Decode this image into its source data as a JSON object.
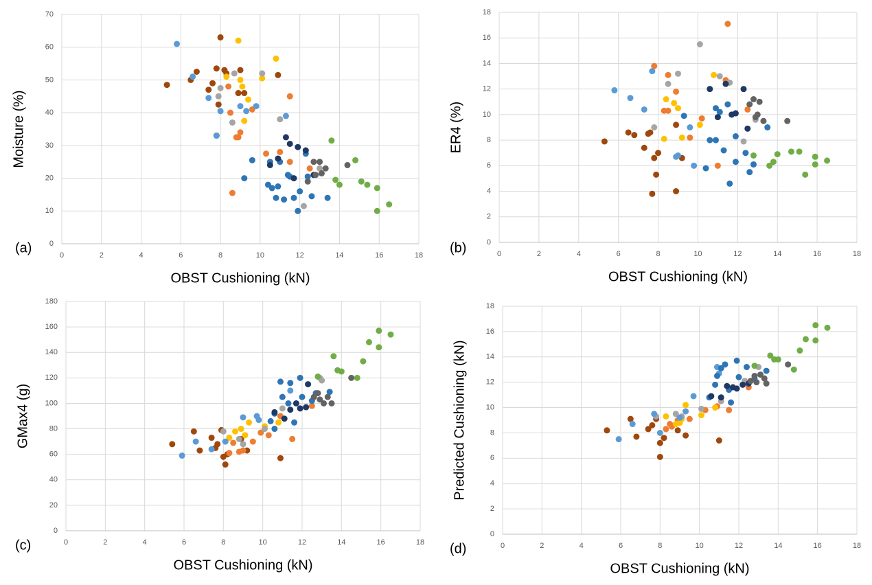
{
  "chart_data": [
    {
      "type": "scatter",
      "label": "(a)",
      "xlabel": "OBST Cushioning (kN)",
      "ylabel": "Moisture (%)",
      "xlim": [
        0,
        18
      ],
      "xticks": [
        0,
        2,
        4,
        6,
        8,
        10,
        12,
        14,
        16,
        18
      ],
      "ylim": [
        0,
        70
      ],
      "yticks": [
        0,
        10,
        20,
        30,
        40,
        50,
        60,
        70
      ],
      "grid": true,
      "series": [
        {
          "color": "#9e480e",
          "x": [
            5.3,
            6.5,
            6.8,
            7.4,
            7.6,
            7.8,
            7.9,
            8.0,
            8.2,
            8.9,
            9.0,
            9.2,
            7.8,
            10.9,
            8.3
          ],
          "values": [
            48.5,
            50,
            52.5,
            47,
            49,
            53.5,
            42.5,
            63,
            53,
            46,
            53,
            46,
            33,
            51.5,
            52
          ]
        },
        {
          "color": "#ed7d31",
          "x": [
            8.5,
            8.8,
            9.0,
            8.9,
            10.3,
            11.0,
            11.5,
            11.5,
            12.5,
            8.6,
            8.4,
            9.6
          ],
          "values": [
            40,
            32.5,
            34,
            32.5,
            27.5,
            28,
            45,
            25,
            23,
            15.5,
            48,
            41
          ]
        },
        {
          "color": "#ffc000",
          "x": [
            8.9,
            10.8,
            8.3,
            9.0,
            10.1,
            9.1,
            9.2,
            9.4
          ],
          "values": [
            62,
            56.5,
            51,
            50,
            50.5,
            48,
            37.5,
            44
          ]
        },
        {
          "color": "#a5a5a5",
          "x": [
            7.9,
            8.0,
            8.7,
            8.6,
            10.1,
            11.0,
            12.2,
            13.0
          ],
          "values": [
            45,
            47.5,
            52,
            37,
            52,
            38,
            11.5,
            23
          ]
        },
        {
          "color": "#5b9bd5",
          "x": [
            5.8,
            6.6,
            7.4,
            7.8,
            8.0,
            9.0,
            9.3,
            9.8,
            11.3
          ],
          "values": [
            61,
            51,
            44.5,
            33,
            40.5,
            42,
            40.5,
            42,
            39
          ]
        },
        {
          "color": "#2e75b6",
          "x": [
            9.2,
            9.6,
            10.4,
            10.6,
            10.8,
            10.9,
            11.2,
            11.4,
            11.7,
            11.9,
            12.0,
            12.4,
            12.6,
            13.4,
            10.5,
            11.0,
            12.3,
            11.5
          ],
          "values": [
            20,
            25.5,
            18,
            17,
            14,
            17.5,
            13.5,
            21,
            14,
            10,
            16,
            20.5,
            14.5,
            14,
            25,
            25,
            27.5,
            20.5
          ]
        },
        {
          "color": "#1f3864",
          "x": [
            10.5,
            10.9,
            11.3,
            11.5,
            11.9,
            12.3,
            11.7,
            12.7
          ],
          "values": [
            24,
            26,
            32.5,
            30.5,
            29.5,
            28.5,
            20,
            21
          ]
        },
        {
          "color": "#636363",
          "x": [
            12.7,
            13.0,
            13.3,
            12.8,
            13.1,
            14.4,
            12.4
          ],
          "values": [
            25,
            25,
            23,
            21,
            21.5,
            24,
            19
          ]
        },
        {
          "color": "#70ad47",
          "x": [
            13.6,
            13.8,
            14.0,
            14.8,
            15.1,
            15.4,
            15.9,
            15.9,
            16.5
          ],
          "values": [
            31.5,
            19.5,
            18,
            25.5,
            19,
            18,
            17,
            10,
            12
          ]
        }
      ]
    },
    {
      "type": "scatter",
      "label": "(b)",
      "xlabel": "OBST Cushioning (kN)",
      "ylabel": "ER4 (%)",
      "xlim": [
        0,
        18
      ],
      "xticks": [
        0,
        2,
        4,
        6,
        8,
        10,
        12,
        14,
        16,
        18
      ],
      "ylim": [
        0,
        18
      ],
      "yticks": [
        0,
        2,
        4,
        6,
        8,
        10,
        12,
        14,
        16,
        18
      ],
      "grid": true,
      "series": [
        {
          "color": "#9e480e",
          "x": [
            5.3,
            6.5,
            6.8,
            7.3,
            7.5,
            7.7,
            7.8,
            7.9,
            8.0,
            8.9,
            8.9,
            9.2,
            7.6
          ],
          "values": [
            7.9,
            8.6,
            8.4,
            7.4,
            8.5,
            3.8,
            6.6,
            5.3,
            7.0,
            4.0,
            9.2,
            6.6,
            8.6
          ]
        },
        {
          "color": "#ed7d31",
          "x": [
            7.8,
            8.5,
            8.9,
            8.5,
            9.6,
            10.2,
            11.0,
            11.5,
            11.4,
            12.5,
            8.3
          ],
          "values": [
            13.8,
            13.1,
            11.8,
            10.3,
            8.2,
            9.7,
            6.0,
            17.1,
            12.7,
            10.4,
            10.3
          ]
        },
        {
          "color": "#ffc000",
          "x": [
            8.3,
            8.4,
            8.8,
            9.2,
            10.1,
            10.8,
            9.0
          ],
          "values": [
            8.1,
            11.2,
            10.9,
            8.2,
            9.2,
            13.1,
            10.5
          ]
        },
        {
          "color": "#a5a5a5",
          "x": [
            7.8,
            8.5,
            9.0,
            10.1,
            11.1,
            12.3,
            12.9,
            11.6
          ],
          "values": [
            9.0,
            12.4,
            13.2,
            15.5,
            13.0,
            7.9,
            9.6,
            12.5
          ]
        },
        {
          "color": "#5b9bd5",
          "x": [
            5.8,
            6.6,
            7.3,
            7.7,
            8.9,
            9.0,
            9.8,
            9.6
          ],
          "values": [
            11.9,
            11.3,
            10.4,
            13.4,
            6.7,
            6.8,
            6.0,
            9.0
          ]
        },
        {
          "color": "#2e75b6",
          "x": [
            9.3,
            10.4,
            10.6,
            10.9,
            11.1,
            11.3,
            11.5,
            11.6,
            11.9,
            11.9,
            12.4,
            12.6,
            12.8,
            13.5,
            10.9
          ],
          "values": [
            9.9,
            5.8,
            8.0,
            8.0,
            10.2,
            7.2,
            10.8,
            4.6,
            6.3,
            8.3,
            7.0,
            5.5,
            6.1,
            9.0,
            10.5
          ]
        },
        {
          "color": "#1f3864",
          "x": [
            10.6,
            11.4,
            11.7,
            11.9,
            12.3,
            12.5,
            11.0
          ],
          "values": [
            12.0,
            12.4,
            10.0,
            10.1,
            12.0,
            8.9,
            9.8
          ]
        },
        {
          "color": "#636363",
          "x": [
            12.6,
            12.8,
            13.0,
            13.1,
            13.3,
            14.5,
            12.9
          ],
          "values": [
            10.8,
            11.2,
            10.0,
            11.0,
            9.5,
            9.5,
            9.8
          ]
        },
        {
          "color": "#70ad47",
          "x": [
            12.8,
            13.6,
            13.8,
            14.0,
            14.7,
            15.1,
            15.4,
            15.9,
            15.9,
            16.5
          ],
          "values": [
            6.8,
            6.0,
            6.3,
            6.9,
            7.1,
            7.1,
            5.3,
            6.1,
            6.7,
            6.4
          ]
        }
      ]
    },
    {
      "type": "scatter",
      "label": "(c)",
      "xlabel": "OBST Cushioning (kN)",
      "ylabel": "GMax4 (g)",
      "xlim": [
        0,
        18
      ],
      "xticks": [
        0,
        2,
        4,
        6,
        8,
        10,
        12,
        14,
        16,
        18
      ],
      "ylim": [
        0,
        180
      ],
      "yticks": [
        0,
        20,
        40,
        60,
        80,
        100,
        120,
        140,
        160,
        180
      ],
      "grid": true,
      "series": [
        {
          "color": "#9e480e",
          "x": [
            5.4,
            6.5,
            6.8,
            7.4,
            7.6,
            7.9,
            8.0,
            8.1,
            8.2,
            8.9,
            9.2,
            10.9,
            7.7
          ],
          "values": [
            68,
            78,
            63,
            73,
            65,
            79,
            58,
            52,
            60,
            72,
            63,
            57,
            68
          ]
        },
        {
          "color": "#ed7d31",
          "x": [
            8.5,
            8.8,
            9.0,
            9.5,
            10.3,
            10.9,
            11.5,
            12.5,
            8.3,
            9.9
          ],
          "values": [
            69,
            62,
            63,
            70,
            75,
            90,
            72,
            98,
            61,
            77
          ]
        },
        {
          "color": "#ffc000",
          "x": [
            8.3,
            8.6,
            8.9,
            9.3,
            10.1,
            10.8,
            9.1
          ],
          "values": [
            73,
            78,
            80,
            85,
            82,
            85,
            75
          ]
        },
        {
          "color": "#a5a5a5",
          "x": [
            8.0,
            8.8,
            9.0,
            10.1,
            11.0,
            12.9,
            13.0
          ],
          "values": [
            78,
            72,
            68,
            80,
            96,
            120,
            118
          ]
        },
        {
          "color": "#5b9bd5",
          "x": [
            5.9,
            6.6,
            7.4,
            8.1,
            9.0,
            9.7,
            9.8,
            11.4
          ],
          "values": [
            59,
            70,
            64,
            70,
            89,
            90,
            87,
            110
          ]
        },
        {
          "color": "#2e75b6",
          "x": [
            10.4,
            10.6,
            10.9,
            11.0,
            11.3,
            11.4,
            11.9,
            12.0,
            12.5,
            12.7,
            13.4,
            11.6,
            10.6
          ],
          "values": [
            86,
            92,
            117,
            105,
            100,
            116,
            120,
            105,
            102,
            108,
            109,
            85,
            80
          ]
        },
        {
          "color": "#1f3864",
          "x": [
            10.6,
            11.4,
            11.7,
            11.9,
            12.2,
            12.3,
            11.1
          ],
          "values": [
            93,
            95,
            100,
            96,
            97,
            115,
            88
          ]
        },
        {
          "color": "#636363",
          "x": [
            12.6,
            12.8,
            13.1,
            13.3,
            13.5,
            14.5,
            12.9
          ],
          "values": [
            105,
            108,
            100,
            105,
            100,
            120,
            103
          ]
        },
        {
          "color": "#70ad47",
          "x": [
            12.8,
            13.6,
            13.8,
            14.0,
            14.8,
            15.1,
            15.4,
            15.9,
            15.9,
            16.5
          ],
          "values": [
            121,
            137,
            126,
            125,
            120,
            133,
            148,
            144,
            157,
            154
          ]
        }
      ]
    },
    {
      "type": "scatter",
      "label": "(d)",
      "xlabel": "OBST Cushioning (kN)",
      "ylabel": "Predicted Cushioning (kN)",
      "xlim": [
        0,
        18
      ],
      "xticks": [
        0,
        2,
        4,
        6,
        8,
        10,
        12,
        14,
        16,
        18
      ],
      "ylim": [
        0,
        18
      ],
      "yticks": [
        0,
        2,
        4,
        6,
        8,
        10,
        12,
        14,
        16,
        18
      ],
      "grid": true,
      "series": [
        {
          "color": "#9e480e",
          "x": [
            5.3,
            6.5,
            6.8,
            7.4,
            7.8,
            8.0,
            8.0,
            8.2,
            8.9,
            9.3,
            11.0,
            7.6
          ],
          "values": [
            8.2,
            9.1,
            7.7,
            8.3,
            9.1,
            6.1,
            7.2,
            7.6,
            8.2,
            7.8,
            7.4,
            8.6
          ]
        },
        {
          "color": "#ed7d31",
          "x": [
            8.3,
            8.6,
            8.9,
            9.5,
            10.3,
            10.9,
            11.5,
            12.5,
            8.5
          ],
          "values": [
            8.3,
            8.5,
            9.0,
            9.1,
            9.8,
            10.1,
            9.8,
            11.6,
            8.7
          ]
        },
        {
          "color": "#ffc000",
          "x": [
            8.3,
            8.8,
            9.1,
            9.3,
            10.1,
            10.8,
            9.0
          ],
          "values": [
            9.3,
            8.7,
            9.1,
            10.2,
            9.4,
            10.0,
            8.8
          ]
        },
        {
          "color": "#a5a5a5",
          "x": [
            7.8,
            8.8,
            9.1,
            10.1,
            11.1,
            12.3,
            13.0
          ],
          "values": [
            9.3,
            9.5,
            9.3,
            9.9,
            10.5,
            12.1,
            13.2
          ]
        },
        {
          "color": "#5b9bd5",
          "x": [
            5.9,
            6.6,
            7.7,
            8.0,
            9.0,
            9.3,
            9.7,
            11.0,
            10.9
          ],
          "values": [
            7.5,
            8.7,
            9.5,
            8.0,
            9.2,
            9.7,
            10.9,
            12.7,
            13.2
          ]
        },
        {
          "color": "#2e75b6",
          "x": [
            10.5,
            10.8,
            10.9,
            11.1,
            11.3,
            11.5,
            11.9,
            12.0,
            12.4,
            12.8,
            13.4,
            11.6
          ],
          "values": [
            10.8,
            11.8,
            12.5,
            13.1,
            13.4,
            11.4,
            13.7,
            12.4,
            13.2,
            12.3,
            12.9,
            10.4
          ]
        },
        {
          "color": "#1f3864",
          "x": [
            10.6,
            11.1,
            11.4,
            11.7,
            11.9,
            12.2,
            12.5
          ],
          "values": [
            10.9,
            10.8,
            11.7,
            11.6,
            11.5,
            11.8,
            11.9
          ]
        },
        {
          "color": "#636363",
          "x": [
            12.6,
            12.8,
            13.1,
            13.3,
            13.4,
            14.5,
            12.9
          ],
          "values": [
            12.1,
            12.5,
            12.6,
            12.3,
            11.9,
            13.4,
            12.0
          ]
        },
        {
          "color": "#70ad47",
          "x": [
            12.8,
            13.6,
            13.8,
            14.0,
            14.8,
            15.1,
            15.4,
            15.9,
            15.9,
            16.5
          ],
          "values": [
            13.3,
            14.1,
            13.8,
            13.8,
            13.0,
            14.5,
            15.4,
            15.3,
            16.5,
            16.3
          ]
        }
      ]
    }
  ]
}
